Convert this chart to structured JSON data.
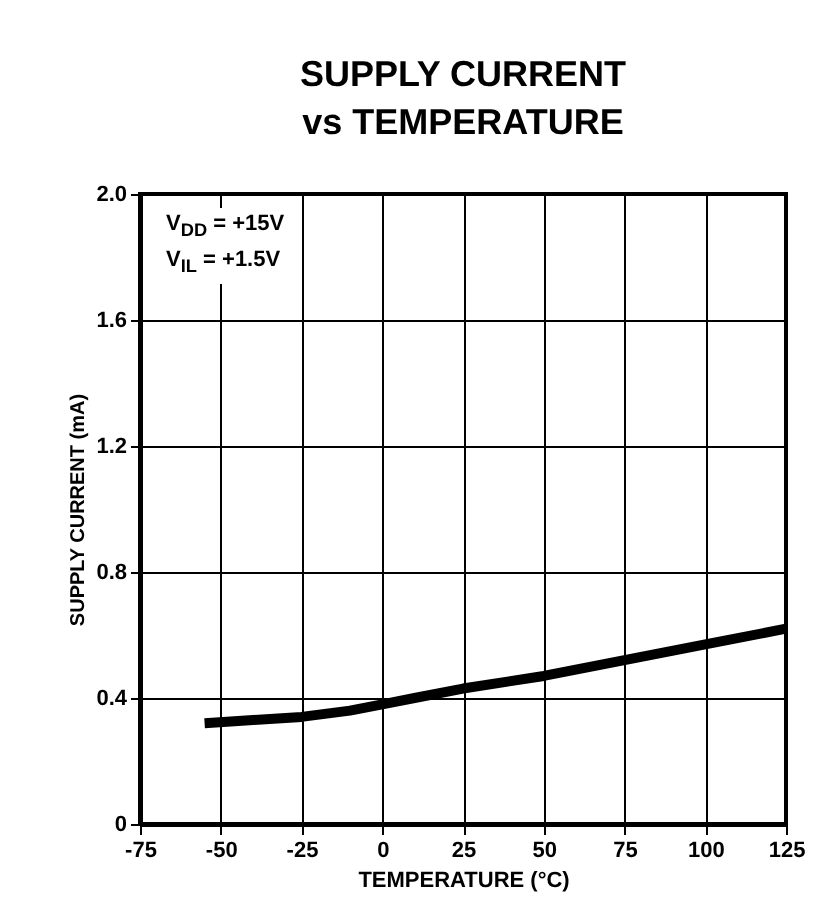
{
  "chart_data": {
    "type": "line",
    "title": "SUPPLY CURRENT\nvs TEMPERATURE",
    "xlabel": "TEMPERATURE (°C)",
    "ylabel": "SUPPLY CURRENT (mA)",
    "annotations": [
      "V$_{DD}$ = +15V",
      "V$_{IL}$ = +1.5V"
    ],
    "x": [
      -55,
      -40,
      -25,
      -10,
      0,
      10,
      25,
      50,
      75,
      100,
      125
    ],
    "series": [
      {
        "color": "#000000",
        "values": [
          0.32,
          0.33,
          0.34,
          0.36,
          0.38,
          0.4,
          0.43,
          0.47,
          0.52,
          0.57,
          0.62
        ]
      }
    ],
    "xlim": [
      -75,
      125
    ],
    "xticks": [
      -75,
      -50,
      -25,
      0,
      25,
      50,
      75,
      100,
      125
    ],
    "ylim": [
      0,
      2
    ],
    "yticks": [
      0,
      0.4,
      0.8,
      1.2,
      1.6,
      {
        "value": 2,
        "label": "2.0"
      }
    ],
    "grid": true,
    "marker": "none",
    "line_style": "solid"
  }
}
